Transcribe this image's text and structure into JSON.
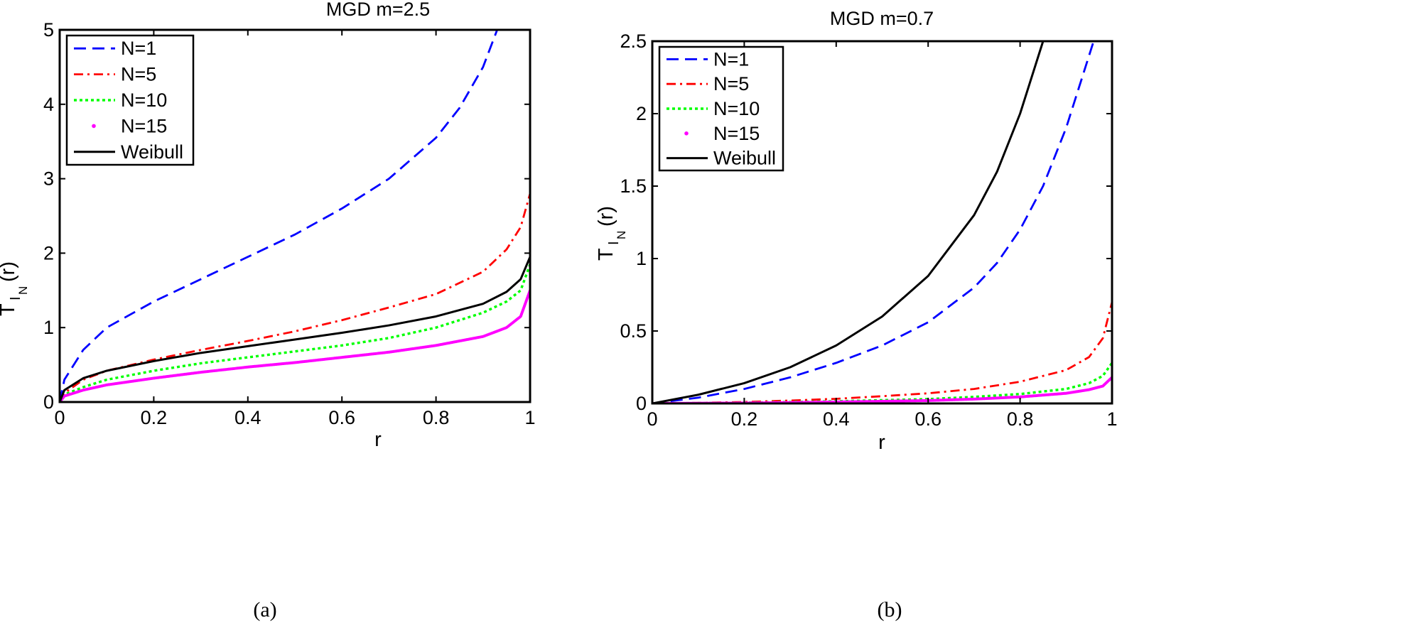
{
  "figure": {
    "captions": [
      "(a)",
      "(b)"
    ]
  },
  "chart_data": [
    {
      "type": "line",
      "title": "MGD m=2.5",
      "xlabel": "r",
      "ylabel_main": "T",
      "ylabel_sub1": "I",
      "ylabel_sub2": "N",
      "ylabel_suffix": "(r)",
      "xlim": [
        0,
        1
      ],
      "ylim": [
        0,
        5
      ],
      "xticks": [
        0,
        0.2,
        0.4,
        0.6,
        0.8,
        1
      ],
      "xtick_labels": [
        "0",
        "0.2",
        "0.4",
        "0.6",
        "0.8",
        "1"
      ],
      "yticks": [
        0,
        1,
        2,
        3,
        4,
        5
      ],
      "ytick_labels": [
        "0",
        "1",
        "2",
        "3",
        "4",
        "5"
      ],
      "legend_position": "top-left",
      "series": [
        {
          "name": "N=1",
          "color": "#0000ff",
          "style": "dashed",
          "x": [
            0,
            0.01,
            0.05,
            0.1,
            0.2,
            0.3,
            0.4,
            0.5,
            0.6,
            0.7,
            0.8,
            0.85,
            0.9,
            0.93
          ],
          "y": [
            0,
            0.3,
            0.7,
            1.0,
            1.35,
            1.65,
            1.95,
            2.25,
            2.6,
            3.0,
            3.55,
            3.95,
            4.5,
            5.0
          ]
        },
        {
          "name": "N=5",
          "color": "#ff0000",
          "style": "dashdot",
          "x": [
            0,
            0.01,
            0.05,
            0.1,
            0.2,
            0.3,
            0.4,
            0.5,
            0.6,
            0.7,
            0.8,
            0.9,
            0.95,
            0.98,
            1.0
          ],
          "y": [
            0,
            0.12,
            0.3,
            0.42,
            0.57,
            0.7,
            0.82,
            0.95,
            1.1,
            1.27,
            1.45,
            1.75,
            2.05,
            2.35,
            2.8
          ]
        },
        {
          "name": "N=10",
          "color": "#00ff00",
          "style": "dotted",
          "x": [
            0,
            0.01,
            0.05,
            0.1,
            0.2,
            0.3,
            0.4,
            0.5,
            0.6,
            0.7,
            0.8,
            0.9,
            0.95,
            0.98,
            1.0
          ],
          "y": [
            0,
            0.1,
            0.2,
            0.3,
            0.42,
            0.52,
            0.6,
            0.68,
            0.76,
            0.86,
            1.0,
            1.2,
            1.35,
            1.5,
            1.85
          ]
        },
        {
          "name": "N=15",
          "color": "#ff00ff",
          "style": "point",
          "x": [
            0,
            0.01,
            0.05,
            0.1,
            0.2,
            0.3,
            0.4,
            0.5,
            0.6,
            0.7,
            0.8,
            0.9,
            0.95,
            0.98,
            1.0
          ],
          "y": [
            0,
            0.08,
            0.16,
            0.23,
            0.32,
            0.4,
            0.47,
            0.53,
            0.6,
            0.67,
            0.76,
            0.88,
            1.0,
            1.15,
            1.5
          ]
        },
        {
          "name": "Weibull",
          "color": "#000000",
          "style": "solid",
          "x": [
            0,
            0.01,
            0.05,
            0.1,
            0.2,
            0.3,
            0.4,
            0.5,
            0.6,
            0.7,
            0.8,
            0.9,
            0.95,
            0.98,
            1.0
          ],
          "y": [
            0,
            0.16,
            0.32,
            0.42,
            0.55,
            0.66,
            0.75,
            0.84,
            0.93,
            1.03,
            1.15,
            1.32,
            1.48,
            1.65,
            1.95
          ]
        }
      ]
    },
    {
      "type": "line",
      "title": "MGD m=0.7",
      "xlabel": "r",
      "ylabel_main": "T",
      "ylabel_sub1": "I",
      "ylabel_sub2": "N",
      "ylabel_suffix": "(r)",
      "xlim": [
        0,
        1
      ],
      "ylim": [
        0,
        2.5
      ],
      "xticks": [
        0,
        0.2,
        0.4,
        0.6,
        0.8,
        1
      ],
      "xtick_labels": [
        "0",
        "0.2",
        "0.4",
        "0.6",
        "0.8",
        "1"
      ],
      "yticks": [
        0,
        0.5,
        1,
        1.5,
        2,
        2.5
      ],
      "ytick_labels": [
        "0",
        "0.5",
        "1",
        "1.5",
        "2",
        "2.5"
      ],
      "legend_position": "top-left",
      "series": [
        {
          "name": "N=1",
          "color": "#0000ff",
          "style": "dashed",
          "x": [
            0,
            0.1,
            0.2,
            0.3,
            0.4,
            0.5,
            0.6,
            0.7,
            0.75,
            0.8,
            0.85,
            0.9,
            0.93,
            0.96
          ],
          "y": [
            0,
            0.04,
            0.1,
            0.18,
            0.28,
            0.4,
            0.56,
            0.8,
            0.97,
            1.2,
            1.5,
            1.9,
            2.2,
            2.5
          ]
        },
        {
          "name": "N=5",
          "color": "#ff0000",
          "style": "dashdot",
          "x": [
            0,
            0.1,
            0.2,
            0.3,
            0.4,
            0.5,
            0.6,
            0.7,
            0.8,
            0.9,
            0.95,
            0.98,
            1.0
          ],
          "y": [
            0,
            0.004,
            0.01,
            0.02,
            0.032,
            0.05,
            0.07,
            0.1,
            0.15,
            0.23,
            0.32,
            0.45,
            0.7
          ]
        },
        {
          "name": "N=10",
          "color": "#00ff00",
          "style": "dotted",
          "x": [
            0,
            0.2,
            0.4,
            0.6,
            0.7,
            0.8,
            0.9,
            0.95,
            0.98,
            1.0
          ],
          "y": [
            0,
            0.005,
            0.015,
            0.03,
            0.045,
            0.065,
            0.1,
            0.14,
            0.19,
            0.28
          ]
        },
        {
          "name": "N=15",
          "color": "#ff00ff",
          "style": "point",
          "x": [
            0,
            0.2,
            0.4,
            0.6,
            0.7,
            0.8,
            0.9,
            0.95,
            0.98,
            1.0
          ],
          "y": [
            0,
            0.003,
            0.01,
            0.02,
            0.03,
            0.045,
            0.07,
            0.095,
            0.12,
            0.18
          ]
        },
        {
          "name": "Weibull",
          "color": "#000000",
          "style": "solid",
          "x": [
            0,
            0.1,
            0.2,
            0.3,
            0.4,
            0.5,
            0.6,
            0.7,
            0.75,
            0.8,
            0.85
          ],
          "y": [
            0,
            0.06,
            0.14,
            0.25,
            0.4,
            0.6,
            0.88,
            1.3,
            1.6,
            2.0,
            2.5
          ]
        }
      ]
    }
  ]
}
